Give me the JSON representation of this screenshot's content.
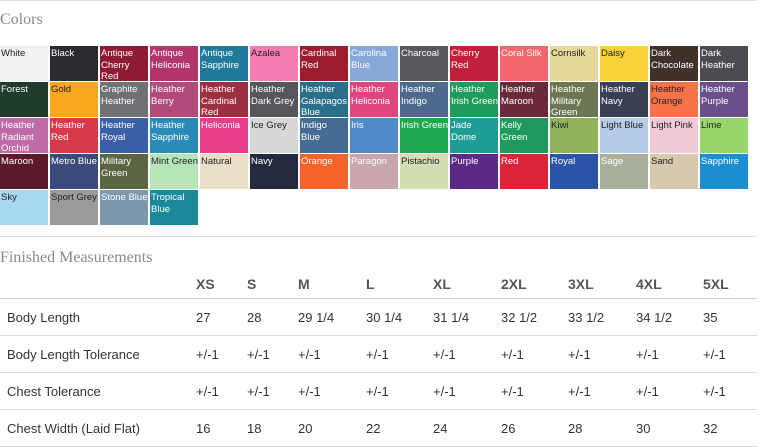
{
  "colors_section": {
    "title": "Colors",
    "swatches": [
      {
        "name": "White",
        "hex": "#f2f2f4",
        "text": "#222222"
      },
      {
        "name": "Black",
        "hex": "#2a2a2e",
        "text": "#ffffff"
      },
      {
        "name": "Antique Cherry Red",
        "hex": "#8e1a34",
        "text": "#ffffff"
      },
      {
        "name": "Antique Heliconia",
        "hex": "#b2366a",
        "text": "#ffffff"
      },
      {
        "name": "Antique Sapphire",
        "hex": "#1f7a9a",
        "text": "#ffffff"
      },
      {
        "name": "Azalea",
        "hex": "#f77cb4",
        "text": "#222222"
      },
      {
        "name": "Cardinal Red",
        "hex": "#9c1c2e",
        "text": "#ffffff"
      },
      {
        "name": "Carolina Blue",
        "hex": "#86a9da",
        "text": "#ffffff"
      },
      {
        "name": "Charcoal",
        "hex": "#55575a",
        "text": "#ffffff"
      },
      {
        "name": "Cherry Red",
        "hex": "#c21f3a",
        "text": "#ffffff"
      },
      {
        "name": "Coral Silk",
        "hex": "#f4666e",
        "text": "#ffffff"
      },
      {
        "name": "Cornsilk",
        "hex": "#e6d99a",
        "text": "#222222"
      },
      {
        "name": "Daisy",
        "hex": "#f7d23a",
        "text": "#222222"
      },
      {
        "name": "Dark Chocolate",
        "hex": "#3f302a",
        "text": "#ffffff"
      },
      {
        "name": "Dark Heather",
        "hex": "#4a4b4f",
        "text": "#ffffff"
      },
      {
        "name": "Forest",
        "hex": "#1f3b2a",
        "text": "#ffffff"
      },
      {
        "name": "Gold",
        "hex": "#f7a81f",
        "text": "#222222"
      },
      {
        "name": "Graphite Heather",
        "hex": "#707075",
        "text": "#ffffff"
      },
      {
        "name": "Heather Berry",
        "hex": "#b24a7c",
        "text": "#ffffff"
      },
      {
        "name": "Heather Cardinal Red",
        "hex": "#9c3040",
        "text": "#ffffff"
      },
      {
        "name": "Heather Dark Grey",
        "hex": "#56575b",
        "text": "#ffffff"
      },
      {
        "name": "Heather Galapagos Blue",
        "hex": "#2a6f8a",
        "text": "#ffffff"
      },
      {
        "name": "Heather Heliconia",
        "hex": "#e0457e",
        "text": "#ffffff"
      },
      {
        "name": "Heather Indigo",
        "hex": "#4d6a8c",
        "text": "#ffffff"
      },
      {
        "name": "Heather Irish Green",
        "hex": "#1f9b5a",
        "text": "#ffffff"
      },
      {
        "name": "Heather Maroon",
        "hex": "#6a2a3a",
        "text": "#ffffff"
      },
      {
        "name": "Heather Military Green",
        "hex": "#6b7752",
        "text": "#ffffff"
      },
      {
        "name": "Heather Navy",
        "hex": "#3a3f55",
        "text": "#ffffff"
      },
      {
        "name": "Heather Orange",
        "hex": "#f7744a",
        "text": "#222222"
      },
      {
        "name": "Heather Purple",
        "hex": "#6a4f8a",
        "text": "#ffffff"
      },
      {
        "name": "Heather Radiant Orchid",
        "hex": "#c06aa8",
        "text": "#ffffff"
      },
      {
        "name": "Heather Red",
        "hex": "#d63a4a",
        "text": "#ffffff"
      },
      {
        "name": "Heather Royal",
        "hex": "#3a5fa8",
        "text": "#ffffff"
      },
      {
        "name": "Heather Sapphire",
        "hex": "#2a8ab8",
        "text": "#ffffff"
      },
      {
        "name": "Heliconia",
        "hex": "#e63f87",
        "text": "#ffffff"
      },
      {
        "name": "Ice Grey",
        "hex": "#d8d9d6",
        "text": "#222222"
      },
      {
        "name": "Indigo Blue",
        "hex": "#456d94",
        "text": "#ffffff"
      },
      {
        "name": "Iris",
        "hex": "#4f89c7",
        "text": "#ffffff"
      },
      {
        "name": "Irish Green",
        "hex": "#1fa84f",
        "text": "#ffffff"
      },
      {
        "name": "Jade Dome",
        "hex": "#1f9c94",
        "text": "#ffffff"
      },
      {
        "name": "Kelly Green",
        "hex": "#1f9a5e",
        "text": "#ffffff"
      },
      {
        "name": "Kiwi",
        "hex": "#8fb25a",
        "text": "#222222"
      },
      {
        "name": "Light Blue",
        "hex": "#b5cde6",
        "text": "#222222"
      },
      {
        "name": "Light Pink",
        "hex": "#f3cad8",
        "text": "#222222"
      },
      {
        "name": "Lime",
        "hex": "#96d66a",
        "text": "#222222"
      },
      {
        "name": "Maroon",
        "hex": "#5a1a2a",
        "text": "#ffffff"
      },
      {
        "name": "Metro Blue",
        "hex": "#3a4a7a",
        "text": "#ffffff"
      },
      {
        "name": "Military Green",
        "hex": "#5a6642",
        "text": "#ffffff"
      },
      {
        "name": "Mint Green",
        "hex": "#b5e6b8",
        "text": "#222222"
      },
      {
        "name": "Natural",
        "hex": "#eadfc8",
        "text": "#222222"
      },
      {
        "name": "Navy",
        "hex": "#232a3d",
        "text": "#ffffff"
      },
      {
        "name": "Orange",
        "hex": "#f7642a",
        "text": "#ffffff"
      },
      {
        "name": "Paragon",
        "hex": "#c9a5ae",
        "text": "#ffffff"
      },
      {
        "name": "Pistachio",
        "hex": "#d2dfb2",
        "text": "#222222"
      },
      {
        "name": "Purple",
        "hex": "#5a2a86",
        "text": "#ffffff"
      },
      {
        "name": "Red",
        "hex": "#d9243a",
        "text": "#ffffff"
      },
      {
        "name": "Royal",
        "hex": "#2a54a8",
        "text": "#ffffff"
      },
      {
        "name": "Sage",
        "hex": "#a8b09a",
        "text": "#ffffff"
      },
      {
        "name": "Sand",
        "hex": "#d9c9ae",
        "text": "#222222"
      },
      {
        "name": "Sapphire",
        "hex": "#1a8ed1",
        "text": "#ffffff"
      },
      {
        "name": "Sky",
        "hex": "#a9d8f2",
        "text": "#222222"
      },
      {
        "name": "Sport Grey",
        "hex": "#9b9b9b",
        "text": "#222222"
      },
      {
        "name": "Stone Blue",
        "hex": "#7d97ad",
        "text": "#ffffff"
      },
      {
        "name": "Tropical Blue",
        "hex": "#1a8a9a",
        "text": "#ffffff"
      }
    ]
  },
  "measurements_section": {
    "title": "Finished Measurements",
    "headers": [
      "",
      "XS",
      "S",
      "M",
      "L",
      "XL",
      "2XL",
      "3XL",
      "4XL",
      "5XL"
    ],
    "rows": [
      {
        "label": "Body Length",
        "values": [
          "27",
          "28",
          "29 1/4",
          "30 1/4",
          "31 1/4",
          "32 1/2",
          "33 1/2",
          "34 1/2",
          "35"
        ]
      },
      {
        "label": "Body Length Tolerance",
        "values": [
          "+/-1",
          "+/-1",
          "+/-1",
          "+/-1",
          "+/-1",
          "+/-1",
          "+/-1",
          "+/-1",
          "+/-1"
        ]
      },
      {
        "label": "Chest Tolerance",
        "values": [
          "+/-1",
          "+/-1",
          "+/-1",
          "+/-1",
          "+/-1",
          "+/-1",
          "+/-1",
          "+/-1",
          "+/-1"
        ]
      },
      {
        "label": "Chest Width (Laid Flat)",
        "values": [
          "16",
          "18",
          "20",
          "22",
          "24",
          "26",
          "28",
          "30",
          "32"
        ]
      }
    ]
  }
}
